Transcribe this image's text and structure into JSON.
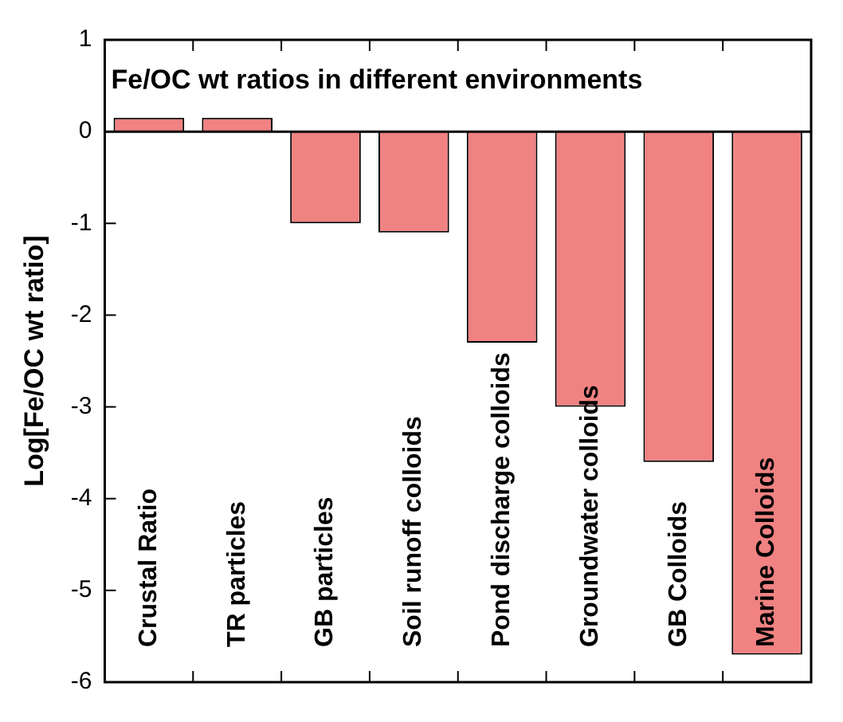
{
  "chart_data": {
    "type": "bar",
    "title": "Fe/OC wt ratios in different environments",
    "ylabel": "Log[Fe/OC wt ratio]",
    "categories": [
      "Crustal Ratio",
      "TR particles",
      "GB particles",
      "Soil runoff colloids",
      "Pond discharge colloids",
      "Groundwater colloids",
      "GB Colloids",
      "Marine Colloids"
    ],
    "values": [
      0.15,
      0.15,
      -1.0,
      -1.1,
      -2.3,
      -3.0,
      -3.6,
      -5.7
    ],
    "color": "#f08282",
    "ylim": [
      -6,
      1
    ],
    "yticks": [
      -6,
      -5,
      -4,
      -3,
      -2,
      -1,
      0,
      1
    ],
    "legend": false
  }
}
